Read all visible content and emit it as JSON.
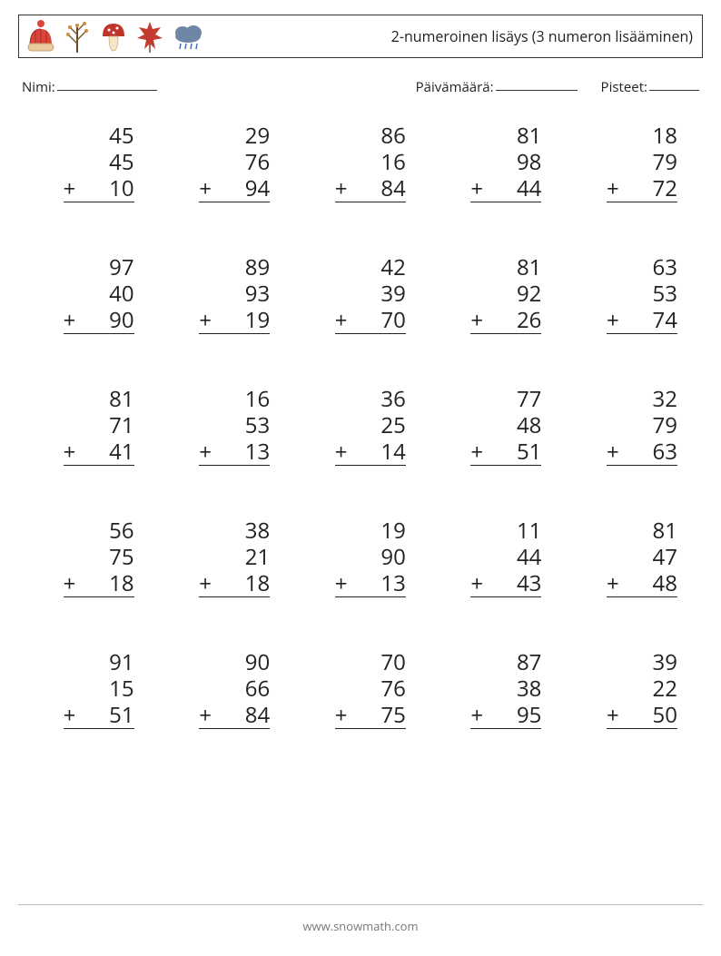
{
  "header": {
    "title": "2-numeroinen lisäys (3 numeron lisääminen)"
  },
  "info": {
    "name_label": "Nimi:",
    "date_label": "Päivämäärä:",
    "score_label": "Pisteet:",
    "name_underline_width": 110,
    "date_underline_width": 90,
    "score_underline_width": 55
  },
  "worksheet": {
    "operator": "+",
    "font_size": 24,
    "text_color": "#222222",
    "rule_color": "#222222",
    "problems": [
      {
        "a": 45,
        "b": 45,
        "c": 10
      },
      {
        "a": 29,
        "b": 76,
        "c": 94
      },
      {
        "a": 86,
        "b": 16,
        "c": 84
      },
      {
        "a": 81,
        "b": 98,
        "c": 44
      },
      {
        "a": 18,
        "b": 79,
        "c": 72
      },
      {
        "a": 97,
        "b": 40,
        "c": 90
      },
      {
        "a": 89,
        "b": 93,
        "c": 19
      },
      {
        "a": 42,
        "b": 39,
        "c": 70
      },
      {
        "a": 81,
        "b": 92,
        "c": 26
      },
      {
        "a": 63,
        "b": 53,
        "c": 74
      },
      {
        "a": 81,
        "b": 71,
        "c": 41
      },
      {
        "a": 16,
        "b": 53,
        "c": 13
      },
      {
        "a": 36,
        "b": 25,
        "c": 14
      },
      {
        "a": 77,
        "b": 48,
        "c": 51
      },
      {
        "a": 32,
        "b": 79,
        "c": 63
      },
      {
        "a": 56,
        "b": 75,
        "c": 18
      },
      {
        "a": 38,
        "b": 21,
        "c": 18
      },
      {
        "a": 19,
        "b": 90,
        "c": 13
      },
      {
        "a": 11,
        "b": 44,
        "c": 43
      },
      {
        "a": 81,
        "b": 47,
        "c": 48
      },
      {
        "a": 91,
        "b": 15,
        "c": 51
      },
      {
        "a": 90,
        "b": 66,
        "c": 84
      },
      {
        "a": 70,
        "b": 76,
        "c": 75
      },
      {
        "a": 87,
        "b": 38,
        "c": 95
      },
      {
        "a": 39,
        "b": 22,
        "c": 50
      }
    ]
  },
  "footer": {
    "text": "www.snowmath.com",
    "color": "#777777"
  },
  "icons": {
    "hat_color": "#d9453a",
    "mushroom_cap": "#c0352a",
    "mushroom_stem": "#f2e6c8",
    "leaf_color": "#c23b2e",
    "tree_trunk": "#6b4a2a",
    "tree_branch": "#7a5a34",
    "tree_leaf": "#d08a3a",
    "cloud_color": "#6f86a6",
    "rain_color": "#4b6fae"
  }
}
